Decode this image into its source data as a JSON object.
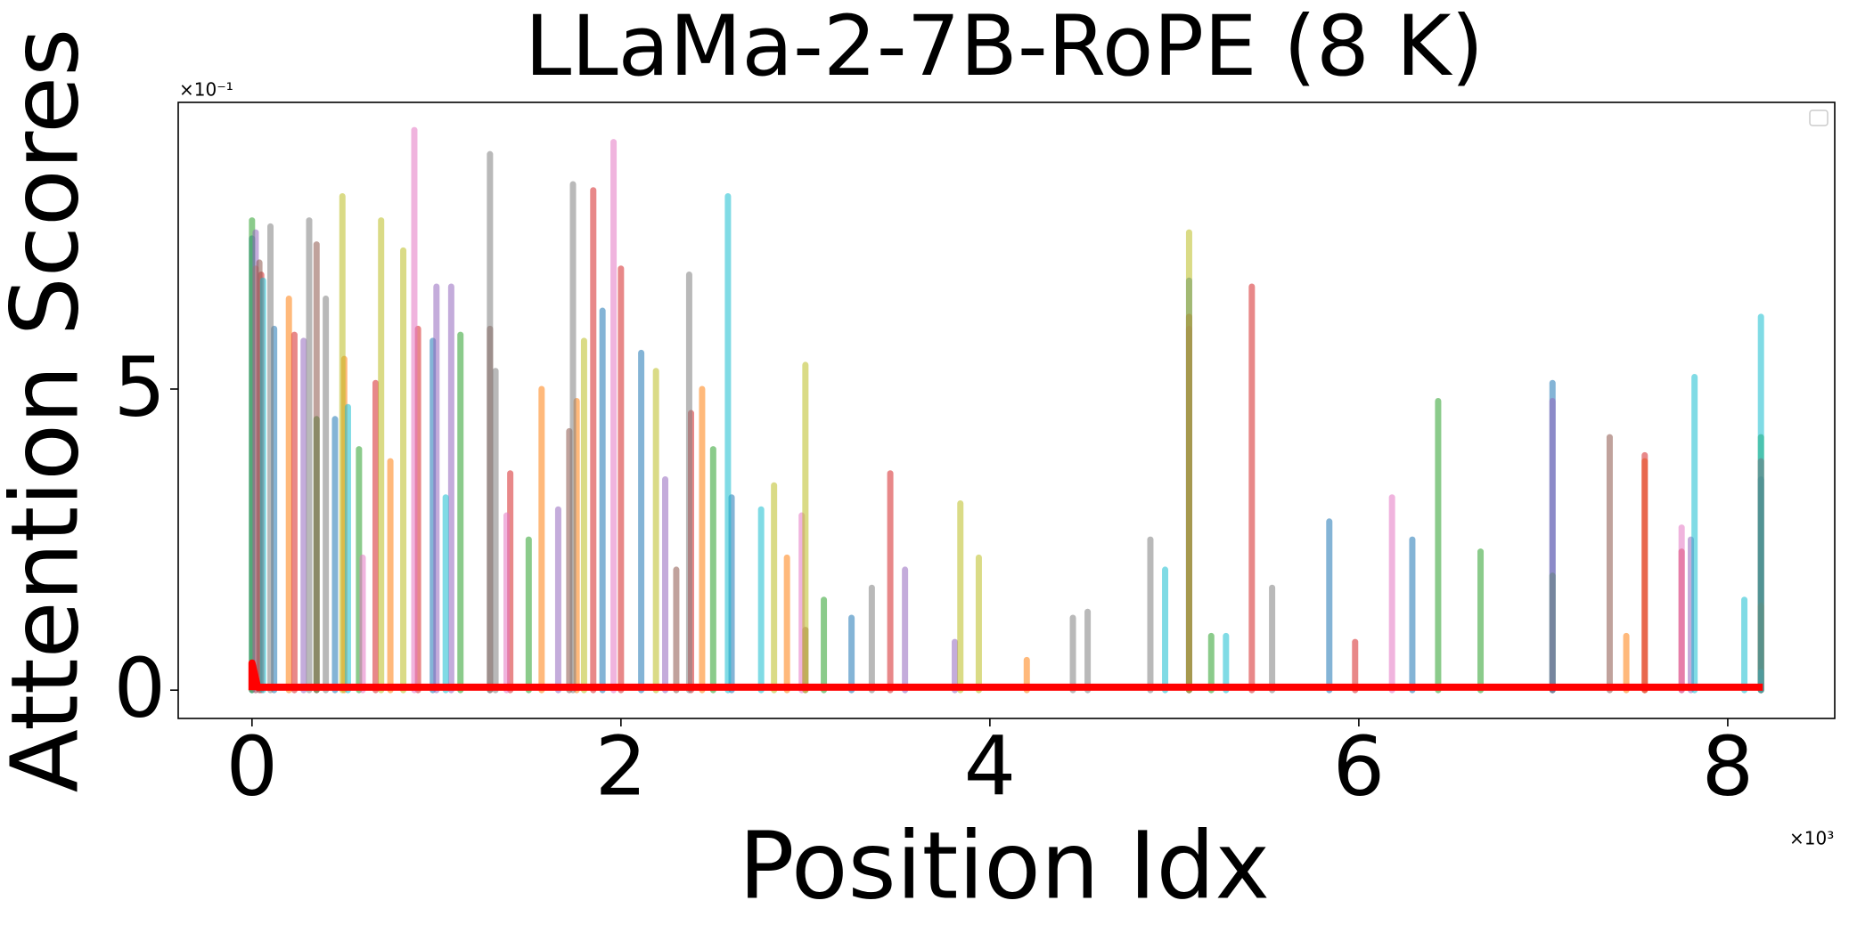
{
  "chart_data": {
    "type": "stem",
    "title": "LLaMa-2-7B-RoPE (8 K)",
    "x_label": "Position Idx",
    "y_label": "Attention Scores",
    "x_offset_text": "×10³",
    "y_offset_text": "×10⁻¹",
    "xlim": [
      -0.4,
      8.58
    ],
    "xticks": [
      0,
      2,
      4,
      6,
      8
    ],
    "ylim": [
      -0.47,
      9.76
    ],
    "yticks": [
      0,
      5
    ],
    "series": [
      {
        "color": "#1f77b4",
        "x": [
          0,
          0.12,
          0.45,
          0.98,
          1.9,
          2.11,
          2.6,
          3.25,
          5.08,
          5.84,
          6.29,
          7.05,
          8.18
        ],
        "values": [
          7.5,
          6.0,
          4.5,
          5.8,
          6.3,
          5.6,
          3.2,
          1.2,
          6.8,
          2.8,
          2.5,
          5.1,
          3.5
        ]
      },
      {
        "color": "#ff7f0e",
        "x": [
          0.02,
          0.2,
          0.5,
          0.75,
          1.57,
          1.76,
          2.44,
          2.9,
          4.2,
          7.45,
          7.55,
          8.18
        ],
        "values": [
          7.0,
          6.5,
          5.5,
          3.8,
          5.0,
          4.8,
          5.0,
          2.2,
          0.5,
          0.9,
          3.8,
          1.4
        ]
      },
      {
        "color": "#2ca02c",
        "x": [
          0,
          0.35,
          0.58,
          1.13,
          1.5,
          2.5,
          3.1,
          5.2,
          6.43,
          6.66,
          7.05,
          8.18
        ],
        "values": [
          7.8,
          4.5,
          4.0,
          5.9,
          2.5,
          4.0,
          1.5,
          0.9,
          4.8,
          2.3,
          1.9,
          4.2
        ]
      },
      {
        "color": "#d62728",
        "x": [
          0.05,
          0.23,
          0.67,
          0.9,
          1.4,
          1.85,
          2.0,
          2.38,
          3.46,
          5.42,
          5.98,
          7.55,
          7.75,
          8.18
        ],
        "values": [
          6.9,
          5.9,
          5.1,
          6.0,
          3.6,
          8.3,
          7.0,
          4.6,
          3.6,
          6.7,
          0.8,
          3.9,
          2.3,
          3.8
        ]
      },
      {
        "color": "#9467bd",
        "x": [
          0.02,
          0.28,
          1.0,
          1.08,
          1.66,
          2.24,
          3.54,
          3.81,
          5.08,
          7.05,
          7.8
        ],
        "values": [
          7.6,
          5.8,
          6.7,
          6.7,
          3.0,
          3.5,
          2.0,
          0.8,
          6.0,
          4.8,
          2.5
        ]
      },
      {
        "color": "#8c564b",
        "x": [
          0.04,
          0.35,
          1.29,
          1.72,
          2.3,
          3.0,
          5.08,
          7.36
        ],
        "values": [
          7.1,
          7.4,
          6.0,
          4.3,
          2.0,
          1.0,
          6.2,
          4.2
        ]
      },
      {
        "color": "#e377c2",
        "x": [
          0.6,
          0.88,
          1.38,
          1.96,
          2.98,
          6.18,
          7.75
        ],
        "values": [
          2.2,
          9.3,
          2.9,
          9.1,
          2.9,
          3.2,
          2.7
        ]
      },
      {
        "color": "#7f7f7f",
        "x": [
          0.1,
          0.31,
          0.4,
          1.29,
          1.32,
          1.74,
          2.37,
          3.36,
          4.45,
          4.53,
          4.87,
          5.53,
          8.18
        ],
        "values": [
          7.7,
          7.8,
          6.5,
          8.9,
          5.3,
          8.4,
          6.9,
          1.7,
          1.2,
          1.3,
          2.5,
          1.7,
          0.3
        ]
      },
      {
        "color": "#bcbd22",
        "x": [
          0.49,
          0.7,
          0.82,
          1.8,
          2.19,
          2.83,
          3.0,
          3.84,
          3.94,
          5.08
        ],
        "values": [
          8.2,
          7.8,
          7.3,
          5.8,
          5.3,
          3.4,
          5.4,
          3.1,
          2.2,
          7.6
        ]
      },
      {
        "color": "#17becf",
        "x": [
          0.06,
          0.52,
          1.05,
          2.58,
          2.76,
          4.95,
          5.28,
          7.82,
          8.09,
          8.18
        ],
        "values": [
          6.8,
          4.7,
          3.2,
          8.2,
          3.0,
          2.0,
          0.9,
          5.2,
          1.5,
          6.2
        ]
      },
      {
        "color": "#ff0000",
        "mode": "line",
        "x": [
          0,
          0,
          0.03,
          8.19
        ],
        "values": [
          0,
          0.45,
          0.05,
          0.05
        ]
      }
    ]
  }
}
